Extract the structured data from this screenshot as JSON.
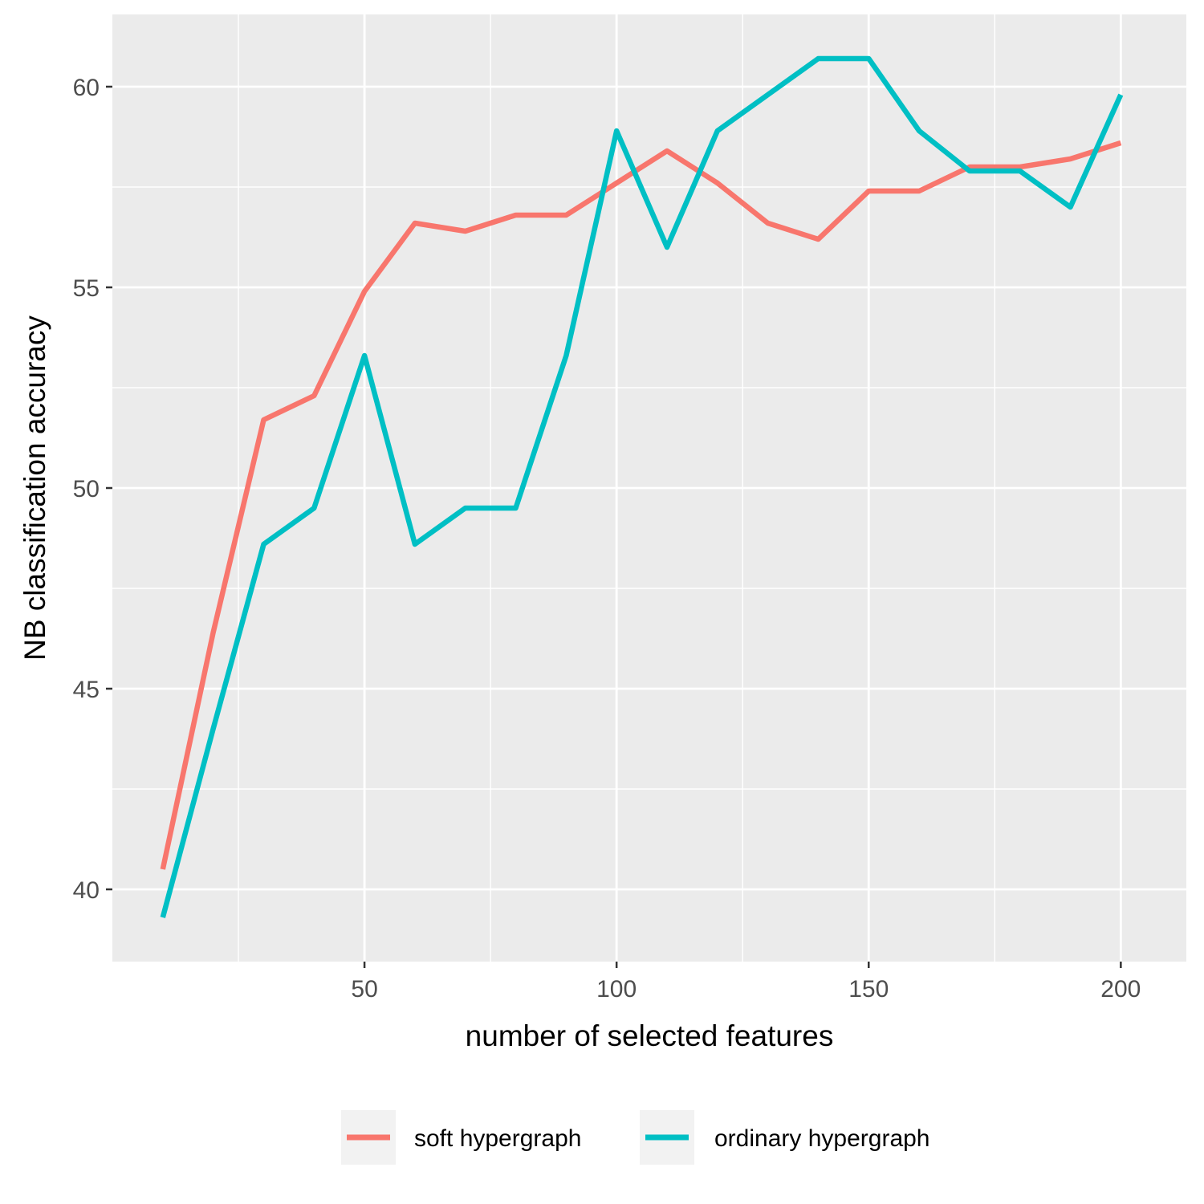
{
  "chart_data": {
    "type": "line",
    "title": "",
    "xlabel": "number of selected features",
    "ylabel": "NB classification accuracy",
    "xlim": [
      0,
      213
    ],
    "ylim": [
      38.2,
      61.8
    ],
    "x_ticks": [
      50,
      100,
      150,
      200
    ],
    "x_minor": [
      25,
      75,
      125,
      175
    ],
    "y_ticks": [
      40,
      45,
      50,
      55,
      60
    ],
    "y_minor": [
      42.5,
      47.5,
      52.5,
      57.5
    ],
    "grid": true,
    "legend_position": "bottom",
    "x": [
      10,
      20,
      30,
      40,
      50,
      60,
      70,
      80,
      90,
      100,
      110,
      120,
      130,
      140,
      150,
      160,
      170,
      180,
      190,
      200
    ],
    "series": [
      {
        "name": "soft hypergraph",
        "color": "#F8766D",
        "values": [
          40.5,
          46.4,
          51.7,
          52.3,
          54.9,
          56.6,
          56.4,
          56.8,
          56.8,
          57.6,
          58.4,
          57.6,
          56.6,
          56.2,
          57.4,
          57.4,
          58.0,
          58.0,
          58.2,
          58.6
        ]
      },
      {
        "name": "ordinary hypergraph",
        "color": "#00BFC4",
        "values": [
          39.3,
          44.0,
          48.6,
          49.5,
          53.3,
          48.6,
          49.5,
          49.5,
          53.3,
          58.9,
          56.0,
          58.9,
          59.8,
          60.7,
          60.7,
          58.9,
          57.9,
          57.9,
          57.0,
          59.8
        ]
      }
    ]
  }
}
